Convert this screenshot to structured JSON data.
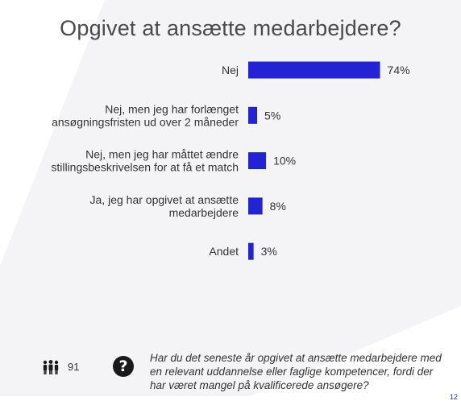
{
  "colors": {
    "bar": "#2323d3",
    "title": "#4a4a4a",
    "text": "#333333",
    "bg_shape": "#f3f3f6"
  },
  "chart_data": {
    "type": "bar",
    "orientation": "horizontal",
    "title": "Opgivet at ansætte medarbejdere?",
    "categories": [
      [
        "Nej"
      ],
      [
        "Nej, men jeg har forlænget",
        "ansøgningsfristen ud over 2 måneder"
      ],
      [
        "Nej, men jeg har måttet ændre",
        "stillingsbeskrivelsen for at få et match"
      ],
      [
        "Ja, jeg har opgivet at ansætte",
        "medarbejdere"
      ],
      [
        "Andet"
      ]
    ],
    "values": [
      74,
      5,
      10,
      8,
      3
    ],
    "value_labels": [
      "74%",
      "5%",
      "10%",
      "8%",
      "3%"
    ],
    "unit": "%",
    "xlim": [
      0,
      100
    ],
    "grid": false,
    "legend": "none"
  },
  "footer": {
    "respondents_icon": "people-icon",
    "respondents_count": "91",
    "help_icon": "question-mark-icon",
    "help_glyph": "?",
    "question_text": "Har du det seneste år opgivet at ansætte medarbejdere med en relevant uddannelse eller faglige kompetencer, fordi der har været mangel på kvalificerede ansøgere?",
    "page_number": "12"
  }
}
